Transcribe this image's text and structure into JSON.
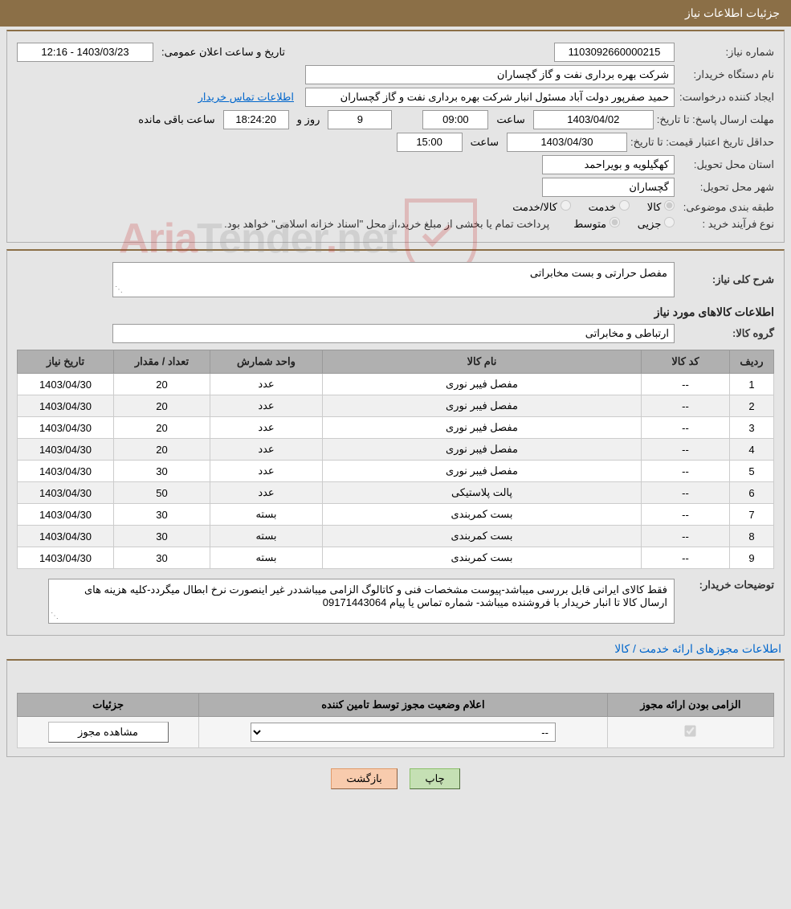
{
  "title": "جزئیات اطلاعات نیاز",
  "header": {
    "need_no_label": "شماره نیاز:",
    "need_no": "1103092660000215",
    "announce_date_label": "تاریخ و ساعت اعلان عمومی:",
    "announce_date": "1403/03/23 - 12:16",
    "buyer_org_label": "نام دستگاه خریدار:",
    "buyer_org": "شرکت بهره برداری نفت و گاز گچساران",
    "requester_label": "ایجاد کننده درخواست:",
    "requester": "حمید  صفرپور دولت آباد مسئول انبار شرکت بهره برداری نفت و گاز گچساران",
    "contact_link": "اطلاعات تماس خریدار",
    "deadline_label": "مهلت ارسال پاسخ: تا تاریخ:",
    "deadline_date": "1403/04/02",
    "hour_label": "ساعت",
    "deadline_hour": "09:00",
    "days_remaining": "9",
    "days_label": "روز و",
    "time_remaining": "18:24:20",
    "remaining_label": "ساعت باقی مانده",
    "validity_label": "حداقل تاریخ اعتبار قیمت: تا تاریخ:",
    "validity_date": "1403/04/30",
    "validity_hour": "15:00",
    "province_label": "استان محل تحویل:",
    "province": "کهگیلویه و بویراحمد",
    "city_label": "شهر محل تحویل:",
    "city": "گچساران",
    "category_label": "طبقه بندی موضوعی:",
    "cat_goods": "کالا",
    "cat_service": "خدمت",
    "cat_goods_service": "کالا/خدمت",
    "purchase_type_label": "نوع فرآیند خرید :",
    "pt_minor": "جزیی",
    "pt_medium": "متوسط",
    "purchase_note": "پرداخت تمام یا بخشی از مبلغ خرید،از محل \"اسناد خزانه اسلامی\" خواهد بود."
  },
  "need": {
    "desc_label": "شرح کلی نیاز:",
    "desc": "مفصل حرارتی و بست مخابراتی",
    "items_title": "اطلاعات کالاهای مورد نیاز",
    "group_label": "گروه کالا:",
    "group": "ارتباطی و مخابراتی"
  },
  "items_table": {
    "headers": {
      "row": "ردیف",
      "code": "کد کالا",
      "name": "نام کالا",
      "unit": "واحد شمارش",
      "qty": "تعداد / مقدار",
      "date": "تاریخ نیاز"
    },
    "rows": [
      {
        "n": "1",
        "code": "--",
        "name": "مفصل فیبر نوری",
        "unit": "عدد",
        "qty": "20",
        "date": "1403/04/30"
      },
      {
        "n": "2",
        "code": "--",
        "name": "مفصل فیبر نوری",
        "unit": "عدد",
        "qty": "20",
        "date": "1403/04/30"
      },
      {
        "n": "3",
        "code": "--",
        "name": "مفصل فیبر نوری",
        "unit": "عدد",
        "qty": "20",
        "date": "1403/04/30"
      },
      {
        "n": "4",
        "code": "--",
        "name": "مفصل فیبر نوری",
        "unit": "عدد",
        "qty": "20",
        "date": "1403/04/30"
      },
      {
        "n": "5",
        "code": "--",
        "name": "مفصل فیبر نوری",
        "unit": "عدد",
        "qty": "30",
        "date": "1403/04/30"
      },
      {
        "n": "6",
        "code": "--",
        "name": "پالت پلاستیکی",
        "unit": "عدد",
        "qty": "50",
        "date": "1403/04/30"
      },
      {
        "n": "7",
        "code": "--",
        "name": "بست کمربندی",
        "unit": "بسته",
        "qty": "30",
        "date": "1403/04/30"
      },
      {
        "n": "8",
        "code": "--",
        "name": "بست کمربندی",
        "unit": "بسته",
        "qty": "30",
        "date": "1403/04/30"
      },
      {
        "n": "9",
        "code": "--",
        "name": "بست کمربندی",
        "unit": "بسته",
        "qty": "30",
        "date": "1403/04/30"
      }
    ]
  },
  "buyer_notes": {
    "label": "توضیحات خریدار:",
    "text": "فقط کالای ایرانی قابل بررسی میباشد-پیوست مشخصات فنی و کاتالوگ  الزامی میباشددر غیر اینصورت نرخ ابطال میگردد-کلیه هزینه های ارسال  کالا  تا انبار خریدار با فروشنده میباشد- شماره تماس یا پیام 09171443064"
  },
  "permissions": {
    "title": "اطلاعات مجوزهای ارائه خدمت / کالا",
    "headers": {
      "mandatory": "الزامی بودن ارائه مجوز",
      "status": "اعلام وضعیت مجوز توسط تامین کننده",
      "details": "جزئیات"
    },
    "select_value": "--",
    "details_btn": "مشاهده مجوز"
  },
  "buttons": {
    "print": "چاپ",
    "back": "بازگشت"
  },
  "watermark": "AriaTender.net"
}
